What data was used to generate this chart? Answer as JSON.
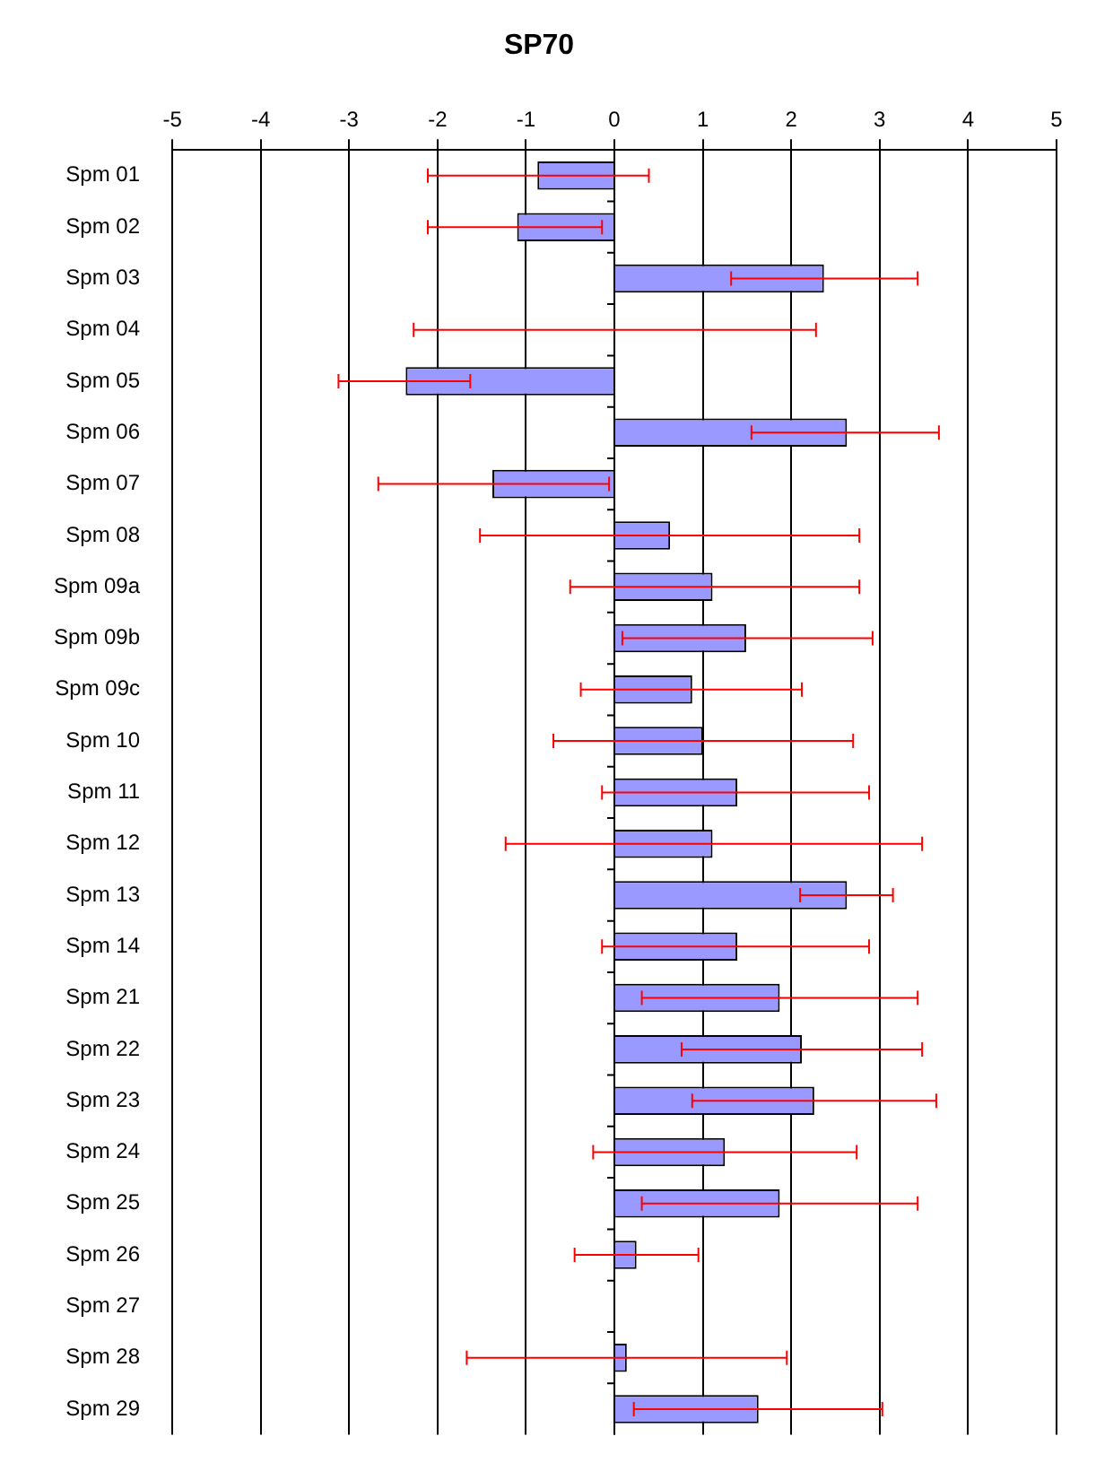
{
  "chart_data": {
    "type": "bar",
    "title": "SP70",
    "orientation": "horizontal",
    "categories": [
      "Spm 01",
      "Spm 02",
      "Spm 03",
      "Spm 04",
      "Spm 05",
      "Spm 06",
      "Spm 07",
      "Spm 08",
      "Spm 09a",
      "Spm 09b",
      "Spm 09c",
      "Spm 10",
      "Spm 11",
      "Spm 12",
      "Spm 13",
      "Spm 14",
      "Spm 21",
      "Spm 22",
      "Spm 23",
      "Spm 24",
      "Spm 25",
      "Spm 26",
      "Spm 27",
      "Spm 28",
      "Spm 29"
    ],
    "values": [
      -0.87,
      -1.1,
      2.37,
      0,
      -2.36,
      2.63,
      -1.38,
      0.63,
      1.11,
      1.49,
      0.88,
      1.0,
      1.39,
      1.11,
      2.63,
      1.39,
      1.87,
      2.12,
      2.26,
      1.25,
      1.87,
      0.25,
      0,
      0.14,
      1.63
    ],
    "errors": [
      [
        -2.11,
        0.39
      ],
      [
        -2.11,
        -0.14
      ],
      [
        1.32,
        3.43
      ],
      [
        -2.27,
        2.28
      ],
      [
        -3.12,
        -1.63
      ],
      [
        1.55,
        3.67
      ],
      [
        -2.67,
        -0.06
      ],
      [
        -1.52,
        2.77
      ],
      [
        -0.5,
        2.77
      ],
      [
        0.09,
        2.92
      ],
      [
        -0.38,
        2.12
      ],
      [
        -0.69,
        2.7
      ],
      [
        -0.14,
        2.88
      ],
      [
        -1.23,
        3.48
      ],
      [
        2.1,
        3.15
      ],
      [
        -0.14,
        2.88
      ],
      [
        0.31,
        3.43
      ],
      [
        0.76,
        3.48
      ],
      [
        0.88,
        3.64
      ],
      [
        -0.24,
        2.74
      ],
      [
        0.31,
        3.43
      ],
      [
        -0.45,
        0.95
      ],
      null,
      [
        -1.67,
        1.95
      ],
      [
        0.22,
        3.03
      ]
    ],
    "color": "#9999ff",
    "xlim": [
      -5,
      5
    ],
    "xticks": [
      -5,
      -4,
      -3,
      -2,
      -1,
      0,
      1,
      2,
      3,
      4,
      5
    ],
    "grid": "x"
  }
}
